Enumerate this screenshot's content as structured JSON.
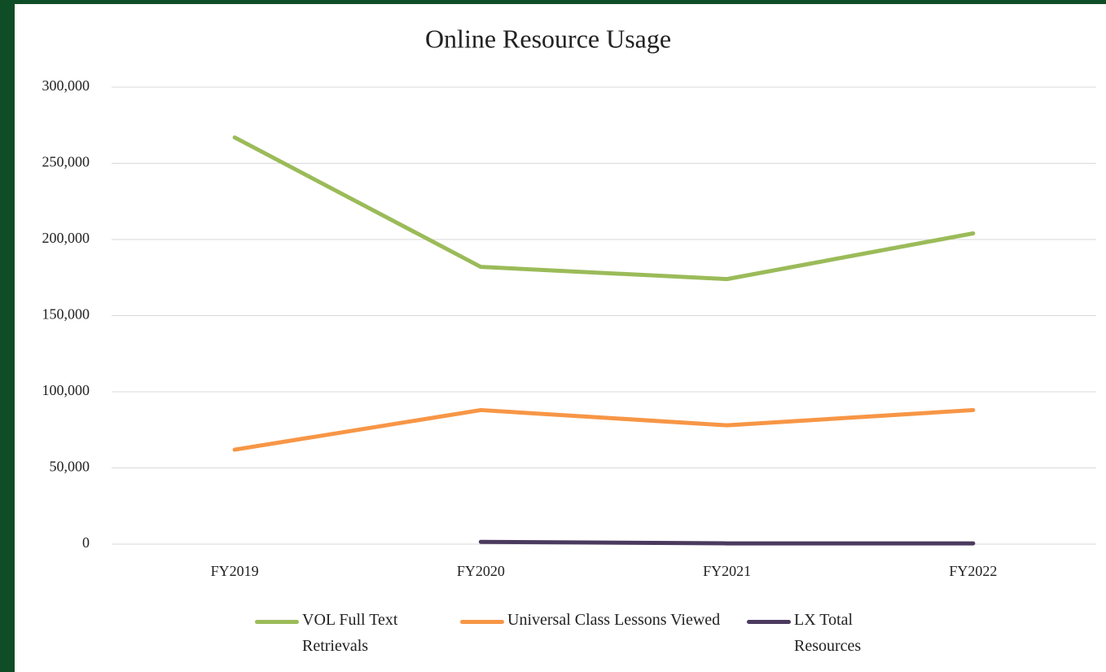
{
  "chart_data": {
    "type": "line",
    "title": "Online Resource Usage",
    "categories": [
      "FY2019",
      "FY2020",
      "FY2021",
      "FY2022"
    ],
    "series": [
      {
        "name": "VOL Full Text Retrievals",
        "color": "#9bbb59",
        "values": [
          267000,
          182000,
          174000,
          204000
        ]
      },
      {
        "name": "Universal Class Lessons Viewed",
        "color": "#f79646",
        "values": [
          62000,
          88000,
          78000,
          88000
        ]
      },
      {
        "name": "LX Total Resources",
        "color": "#4b3a5e",
        "values": [
          null,
          1500,
          500,
          500
        ]
      }
    ],
    "ylim": [
      0,
      300000
    ],
    "yticks": [
      0,
      {
        "value": 50000,
        "label": "50,000"
      },
      {
        "value": 100000,
        "label": "100,000"
      },
      {
        "value": 150000,
        "label": "150,000"
      },
      {
        "value": 200000,
        "label": "200,000"
      },
      {
        "value": 250000,
        "label": "250,000"
      },
      {
        "value": 300000,
        "label": "300,000"
      }
    ],
    "grid": true,
    "legend": "bottom"
  }
}
